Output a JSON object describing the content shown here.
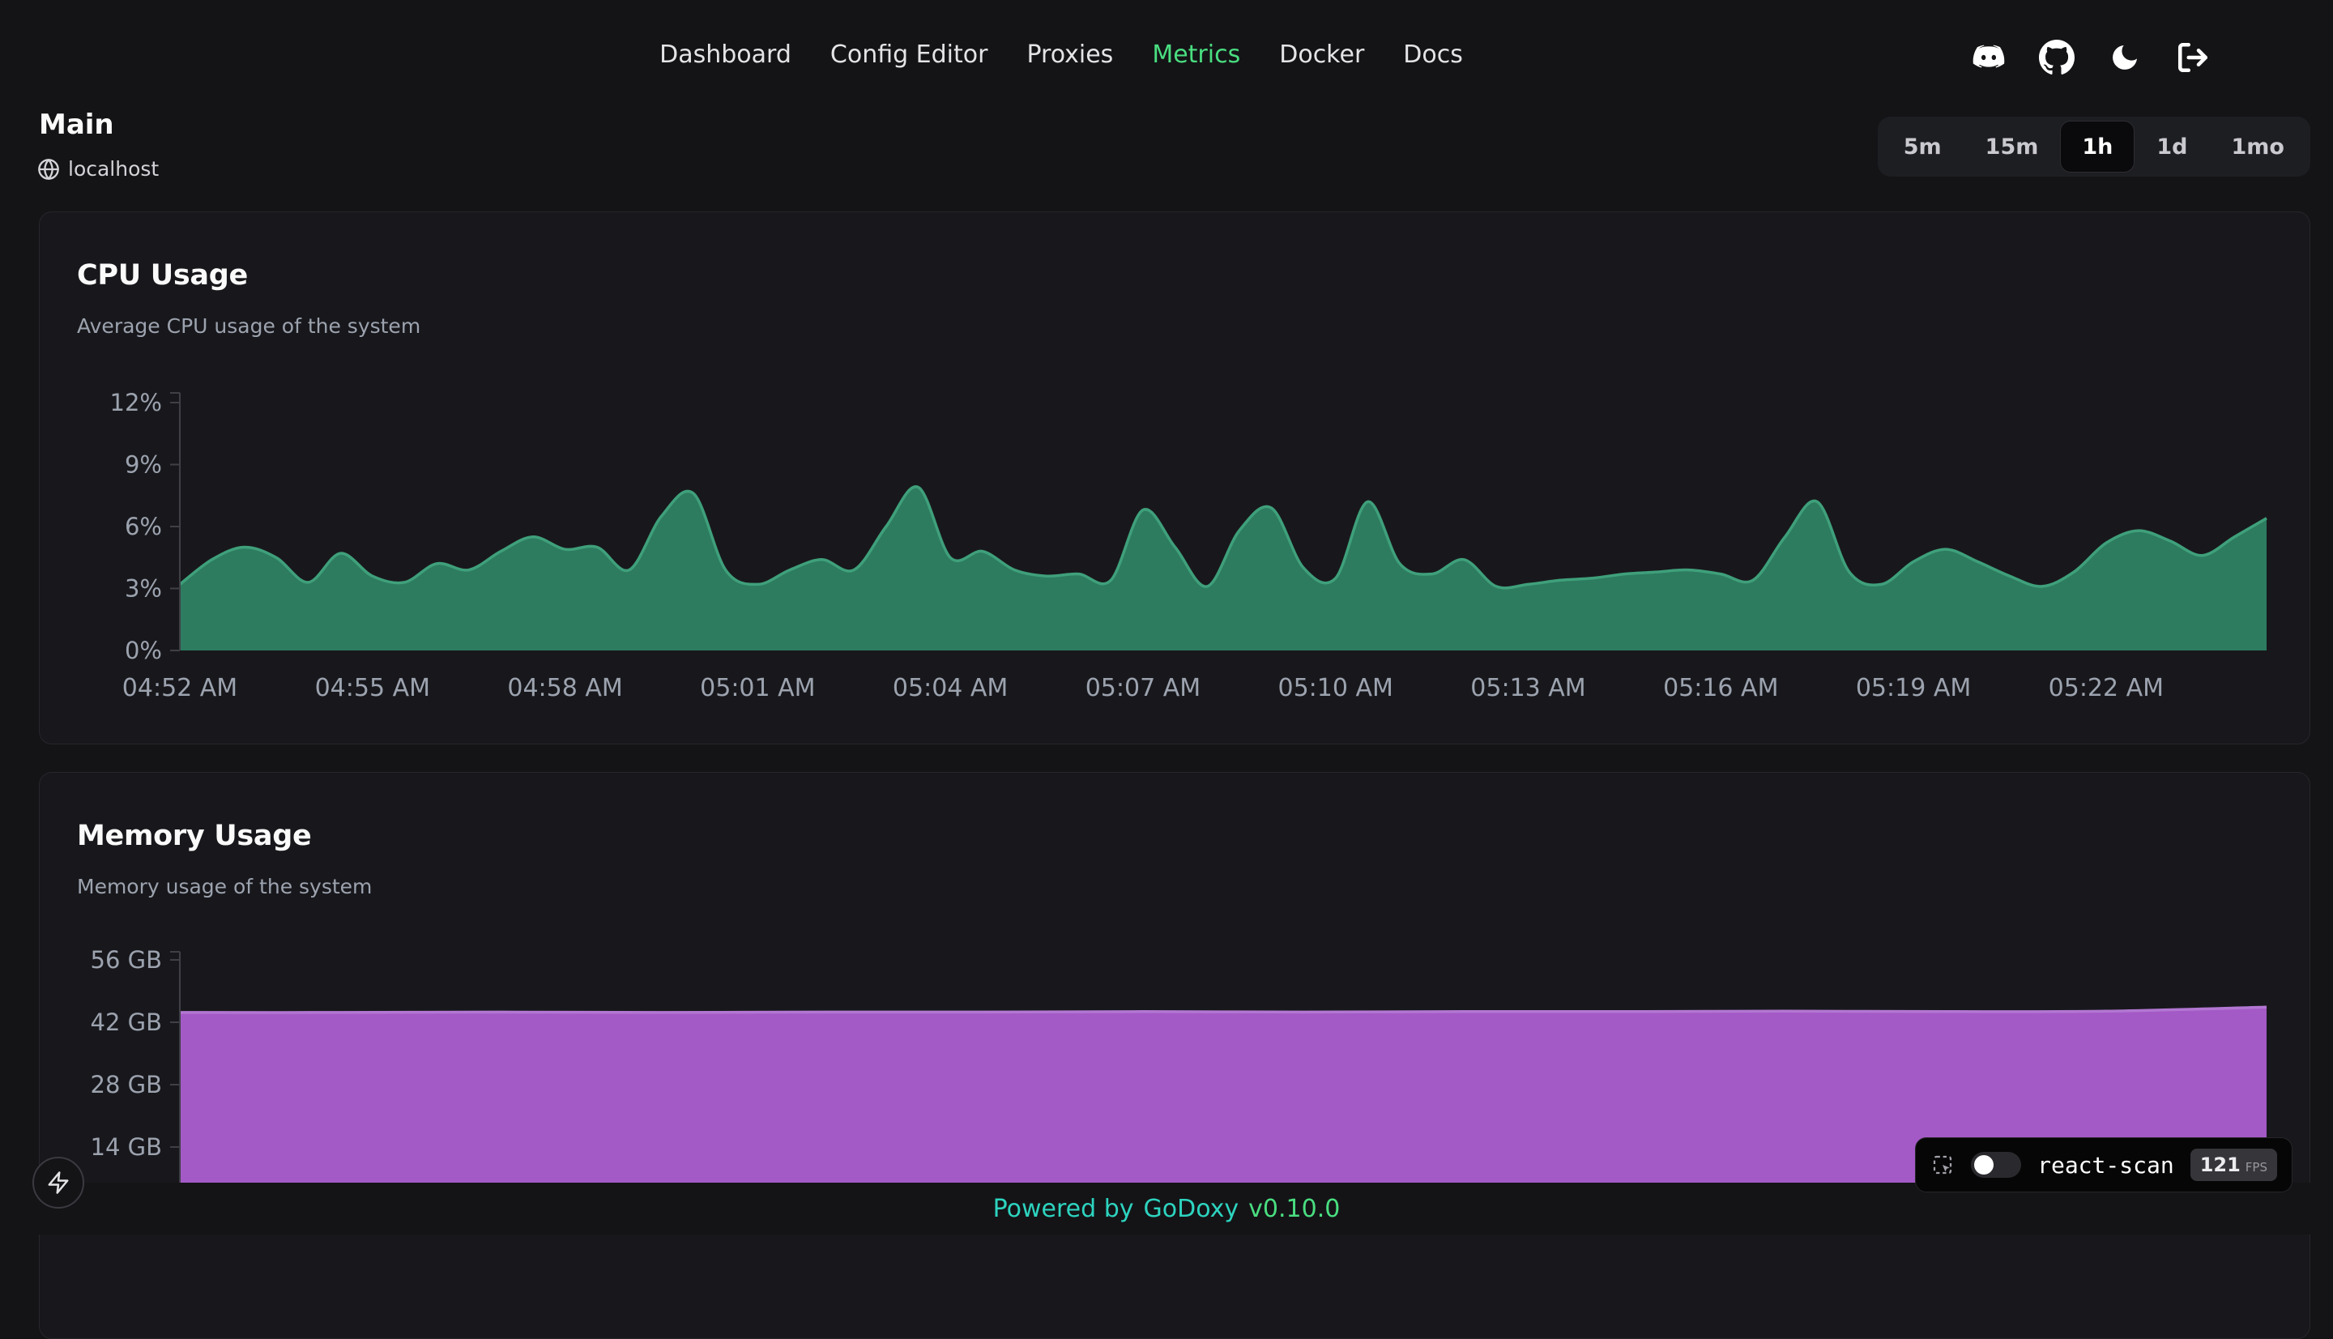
{
  "nav": {
    "items": [
      {
        "label": "Dashboard",
        "active": false
      },
      {
        "label": "Config Editor",
        "active": false
      },
      {
        "label": "Proxies",
        "active": false
      },
      {
        "label": "Metrics",
        "active": true
      },
      {
        "label": "Docker",
        "active": false
      },
      {
        "label": "Docs",
        "active": false
      }
    ]
  },
  "header": {
    "title": "Main",
    "host": "localhost"
  },
  "time_range": {
    "options": [
      "5m",
      "15m",
      "1h",
      "1d",
      "1mo"
    ],
    "selected": "1h"
  },
  "cards": [
    {
      "title": "CPU Usage",
      "subtitle": "Average CPU usage of the system"
    },
    {
      "title": "Memory Usage",
      "subtitle": "Memory usage of the system"
    }
  ],
  "footer": {
    "prefix": "Powered by",
    "brand": "GoDoxy",
    "version": "v0.10.0"
  },
  "react_scan": {
    "label": "react-scan",
    "fps": "121",
    "fps_unit": "FPS",
    "toggle_state": "off"
  },
  "icons": {
    "top_right": [
      "discord-icon",
      "github-icon",
      "moon-icon",
      "logout-icon"
    ],
    "host": "globe-icon",
    "floating": "zap-icon",
    "react_scan": "inspect-icon"
  },
  "colors": {
    "accent": "#4ade80",
    "teal": "#2dd4bf",
    "bg": "#141417",
    "card": "#18181c",
    "axis": "#3f3f46",
    "tick_text": "#9ca3af",
    "cpu_fill": "#2d7c60",
    "cpu_stroke": "#3fa07b",
    "mem_fill": "#a45ac6",
    "mem_stroke": "#b277d2"
  },
  "chart_data": [
    {
      "type": "area",
      "title": "CPU Usage",
      "grid": false,
      "legend": false,
      "ylim": [
        0,
        12
      ],
      "ytick_values": [
        0,
        3,
        6,
        9,
        12
      ],
      "ytick_labels": [
        "0%",
        "3%",
        "6%",
        "9%",
        "12%"
      ],
      "x_step_min": 0.5,
      "x_tick_interval_min": 3,
      "x_tick_labels": [
        "04:52 AM",
        "04:55 AM",
        "04:58 AM",
        "05:01 AM",
        "05:04 AM",
        "05:07 AM",
        "05:10 AM",
        "05:13 AM",
        "05:16 AM",
        "05:19 AM",
        "05:22 AM"
      ],
      "series": [
        {
          "name": "cpu_percent",
          "unit": "%",
          "values": [
            3.2,
            4.4,
            5.0,
            4.5,
            3.3,
            4.7,
            3.6,
            3.3,
            4.2,
            3.9,
            4.8,
            5.5,
            4.9,
            5.0,
            3.9,
            6.5,
            7.6,
            3.9,
            3.2,
            3.9,
            4.4,
            3.9,
            6.0,
            7.9,
            4.5,
            4.8,
            3.9,
            3.6,
            3.7,
            3.4,
            6.8,
            5.0,
            3.1,
            5.8,
            6.9,
            4.0,
            3.5,
            7.2,
            4.2,
            3.7,
            4.4,
            3.1,
            3.2,
            3.4,
            3.5,
            3.7,
            3.8,
            3.9,
            3.7,
            3.4,
            5.5,
            7.2,
            3.8,
            3.2,
            4.3,
            4.9,
            4.3,
            3.6,
            3.1,
            3.8,
            5.2,
            5.8,
            5.3,
            4.6,
            5.5,
            6.4
          ]
        }
      ]
    },
    {
      "type": "area",
      "title": "Memory Usage",
      "grid": false,
      "legend": false,
      "ylim": [
        0,
        56
      ],
      "ytick_values": [
        14,
        28,
        42,
        56
      ],
      "ytick_labels": [
        "14 GB",
        "28 GB",
        "42 GB",
        "56 GB"
      ],
      "x_step_min": 2.5,
      "series": [
        {
          "name": "memory_gb",
          "unit": "GB",
          "values": [
            44.2,
            44.2,
            44.3,
            44.2,
            44.3,
            44.3,
            44.4,
            44.3,
            44.4,
            44.4,
            44.5,
            44.4,
            44.5,
            45.4
          ]
        }
      ]
    }
  ]
}
